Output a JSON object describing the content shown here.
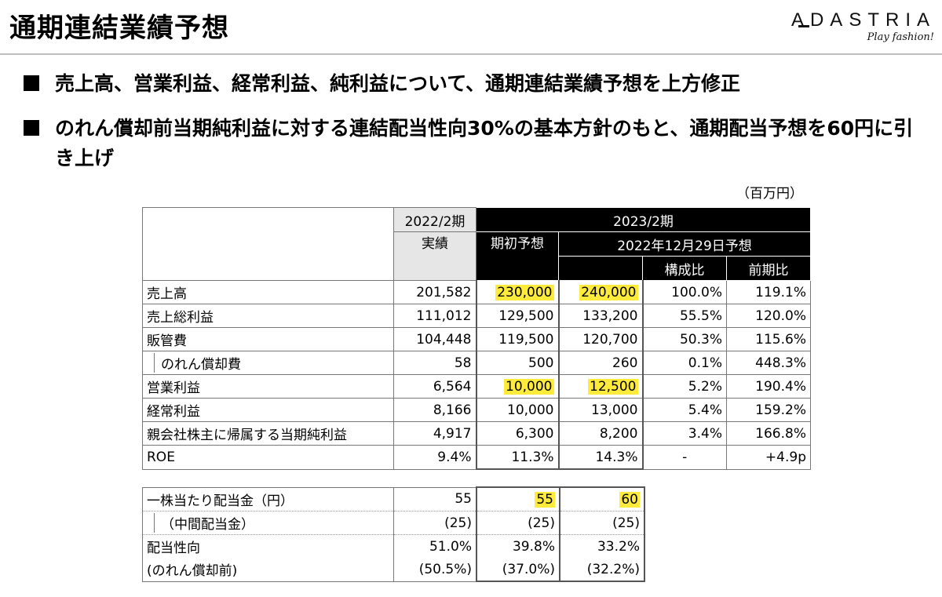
{
  "title": "通期連結業績予想",
  "logo": {
    "word": "ADASTRIA",
    "tagline": "Play fashion!"
  },
  "bullets": [
    "売上高、営業利益、経常利益、純利益について、通期連結業績予想を上方修正",
    "のれん償却前当期純利益に対する連結配当性向30%の基本方針のもと、通期配当予想を60円に引き上げ"
  ],
  "unit": "（百万円）",
  "table": {
    "header": {
      "prev_period": "2022/2期",
      "prev_sub": "実績",
      "cur_period": "2023/2期",
      "initial": "期初予想",
      "revised": "2022年12月29日予想",
      "composition": "構成比",
      "yoy": "前期比"
    },
    "rows": [
      {
        "label": "売上高",
        "prev": "201,582",
        "initial": "230,000",
        "revised": "240,000",
        "comp": "100.0%",
        "yoy": "119.1%"
      },
      {
        "label": "売上総利益",
        "prev": "111,012",
        "initial": "129,500",
        "revised": "133,200",
        "comp": "55.5%",
        "yoy": "120.0%"
      },
      {
        "label": "販管費",
        "prev": "104,448",
        "initial": "119,500",
        "revised": "120,700",
        "comp": "50.3%",
        "yoy": "115.6%"
      },
      {
        "label": "のれん償却費",
        "prev": "58",
        "initial": "500",
        "revised": "260",
        "comp": "0.1%",
        "yoy": "448.3%"
      },
      {
        "label": "営業利益",
        "prev": "6,564",
        "initial": "10,000",
        "revised": "12,500",
        "comp": "5.2%",
        "yoy": "190.4%"
      },
      {
        "label": "経常利益",
        "prev": "8,166",
        "initial": "10,000",
        "revised": "13,000",
        "comp": "5.4%",
        "yoy": "159.2%"
      },
      {
        "label": "親会社株主に帰属する当期純利益",
        "prev": "4,917",
        "initial": "6,300",
        "revised": "8,200",
        "comp": "3.4%",
        "yoy": "166.8%"
      },
      {
        "label": "ROE",
        "prev": "9.4%",
        "initial": "11.3%",
        "revised": "14.3%",
        "comp": "-",
        "yoy": "+4.9p"
      }
    ]
  },
  "dividend": {
    "rows": [
      {
        "label": "一株当たり配当金（円）",
        "prev": "55",
        "initial": "55",
        "revised": "60"
      },
      {
        "label": "（中間配当金）",
        "prev": "(25)",
        "initial": "(25)",
        "revised": "(25)"
      },
      {
        "label": "配当性向",
        "prev": "51.0%",
        "initial": "39.8%",
        "revised": "33.2%"
      },
      {
        "label": "(のれん償却前)",
        "prev": "(50.5%)",
        "initial": "(37.0%)",
        "revised": "(32.2%)"
      }
    ]
  },
  "colors": {
    "highlight": "#ffeb3b",
    "header_black": "#000000",
    "header_gray": "#e6e6e6"
  }
}
